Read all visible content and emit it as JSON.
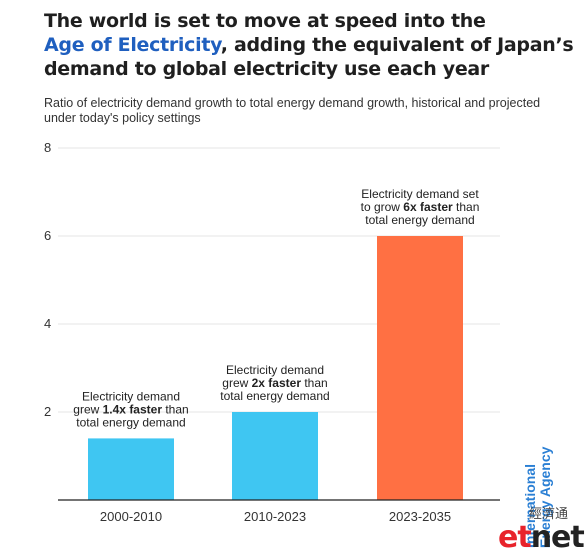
{
  "header": {
    "title_line1": "The world is set to move at speed into the",
    "title_highlight": "Age of Electricity",
    "title_line2_rest": ", adding the equivalent of Japan’s",
    "title_line3": "demand to global electricity use each year",
    "subtitle": "Ratio of electricity demand growth to total energy demand growth, historical and projected under today's policy settings"
  },
  "chart_data": {
    "type": "bar",
    "title": "",
    "xlabel": "",
    "ylabel": "",
    "categories": [
      "2000-2010",
      "2010-2023",
      "2023-2035"
    ],
    "values": [
      1.4,
      2,
      6
    ],
    "ylim": [
      0,
      8
    ],
    "yticks": [
      2,
      4,
      6,
      8
    ],
    "grid": true,
    "colors": [
      "#3fc6f2",
      "#3fc6f2",
      "#ff7043"
    ],
    "annotations": [
      {
        "lines": [
          [
            {
              "t": "Electricity demand",
              "b": false
            }
          ],
          [
            {
              "t": "grew ",
              "b": false
            },
            {
              "t": "1.4x faster",
              "b": true
            },
            {
              "t": " than",
              "b": false
            }
          ],
          [
            {
              "t": "total energy demand",
              "b": false
            }
          ]
        ]
      },
      {
        "lines": [
          [
            {
              "t": "Electricity demand",
              "b": false
            }
          ],
          [
            {
              "t": "grew ",
              "b": false
            },
            {
              "t": "2x faster",
              "b": true
            },
            {
              "t": " than",
              "b": false
            }
          ],
          [
            {
              "t": "total energy demand",
              "b": false
            }
          ]
        ]
      },
      {
        "lines": [
          [
            {
              "t": "Electricity demand set",
              "b": false
            }
          ],
          [
            {
              "t": "to grow ",
              "b": false
            },
            {
              "t": "6x faster",
              "b": true
            },
            {
              "t": " than",
              "b": false
            }
          ],
          [
            {
              "t": "total energy demand",
              "b": false
            }
          ]
        ]
      }
    ]
  },
  "branding": {
    "source_line1": "International",
    "source_line2": "Energy Agency",
    "watermark_cn": "經濟通",
    "watermark_et": "et",
    "watermark_net": "net",
    "colors": {
      "iea": "#2a7fd4",
      "et": "#e8232b",
      "net": "#222222"
    }
  }
}
